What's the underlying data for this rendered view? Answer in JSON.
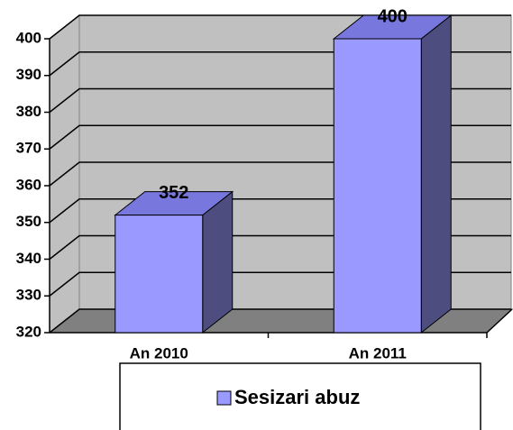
{
  "chart_data": {
    "type": "bar",
    "categories": [
      "An 2010",
      "An 2011"
    ],
    "series": [
      {
        "name": "Sesizari abuz",
        "color": "#9999ff",
        "values": [
          352,
          400
        ]
      }
    ],
    "ylim": [
      320,
      400
    ],
    "yticks": [
      320,
      330,
      340,
      350,
      360,
      370,
      380,
      390,
      400
    ],
    "grid": true
  }
}
